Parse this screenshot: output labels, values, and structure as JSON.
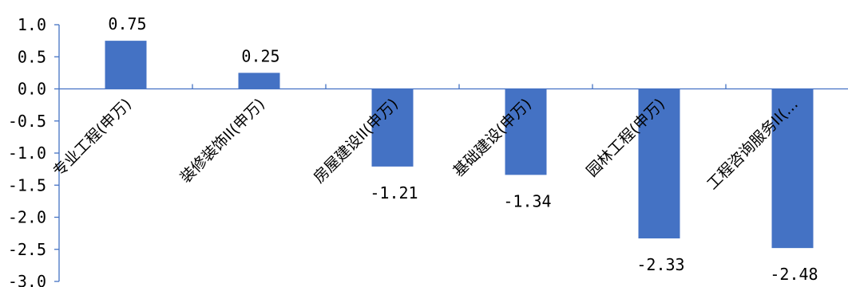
{
  "chart_data": {
    "type": "bar",
    "categories": [
      "专业工程(申万)",
      "装修装饰II(申万)",
      "房屋建设II(申万)",
      "基础建设(申万)",
      "园林工程(申万)",
      "工程咨询服务II(…"
    ],
    "values": [
      0.75,
      0.25,
      -1.21,
      -1.34,
      -2.33,
      -2.48
    ],
    "value_labels": [
      "0.75",
      "0.25",
      "-1.21",
      "-1.34",
      "-2.33",
      "-2.48"
    ],
    "y_ticks": [
      "1.0",
      "0.5",
      "0.0",
      "-0.5",
      "-1.0",
      "-1.5",
      "-2.0",
      "-2.5",
      "-3.0"
    ],
    "ylim": [
      -3.0,
      1.0
    ],
    "title": "",
    "xlabel": "",
    "ylabel": "",
    "grid": false,
    "legend": "none",
    "colors": {
      "bar": "#4472c4",
      "axis": "#4472c4",
      "text": "#000000"
    }
  }
}
